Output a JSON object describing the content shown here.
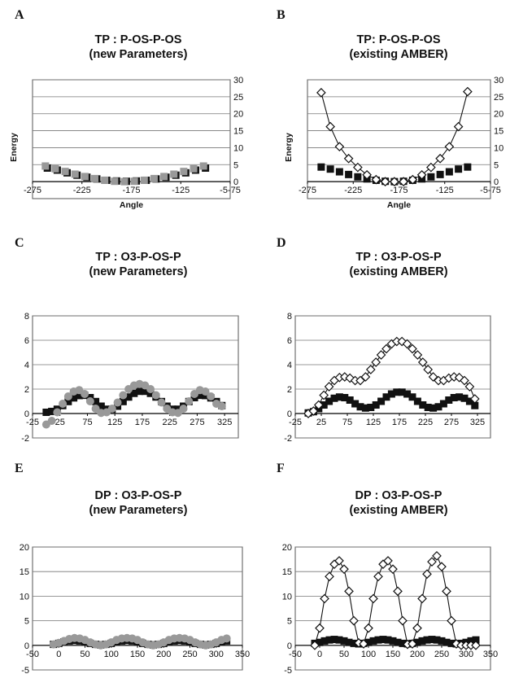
{
  "panels": [
    {
      "letter": "A",
      "title1": "TP : P-OS-P-OS",
      "title2": "(new Parameters)"
    },
    {
      "letter": "B",
      "title1": "TP: P-OS-P-OS",
      "title2": "(existing AMBER)"
    },
    {
      "letter": "C",
      "title1": "TP : O3-P-OS-P",
      "title2": "(new Parameters)"
    },
    {
      "letter": "D",
      "title1": "TP : O3-P-OS-P",
      "title2": "(existing AMBER)"
    },
    {
      "letter": "E",
      "title1": "DP : O3-P-OS-P",
      "title2": "(new Parameters)"
    },
    {
      "letter": "F",
      "title1": "DP : O3-P-OS-P",
      "title2": "(existing AMBER)"
    }
  ],
  "chart_data": [
    {
      "type": "scatter",
      "title": "TP : P-OS-P-OS (new Parameters)",
      "xlabel": "Angle",
      "ylabel": "Energy",
      "xlim": [
        -275,
        -75
      ],
      "ylim": [
        -5,
        30
      ],
      "xticks": [
        -275,
        -225,
        -175,
        -125,
        -75
      ],
      "xticklabels": [
        "-275",
        "-225",
        "-175",
        "-125",
        "-5-75"
      ],
      "yticks": [
        0,
        5,
        10,
        15,
        20,
        25,
        30
      ],
      "ytick_side": "right",
      "grid": true,
      "series": [
        {
          "marker": "square",
          "color": "#111111",
          "connected": false,
          "x": [
            -260,
            -250,
            -240,
            -230,
            -220,
            -210,
            -200,
            -190,
            -180,
            -170,
            -160,
            -150,
            -140,
            -130,
            -120,
            -110,
            -100
          ],
          "y": [
            4.0,
            3.4,
            2.6,
            1.9,
            1.3,
            0.8,
            0.4,
            0.2,
            0.1,
            0.2,
            0.4,
            0.8,
            1.3,
            1.9,
            2.6,
            3.4,
            4.0
          ]
        },
        {
          "marker": "square",
          "color": "#999999",
          "connected": false,
          "x": [
            -262,
            -252,
            -242,
            -232,
            -222,
            -212,
            -202,
            -192,
            -182,
            -172,
            -162,
            -152,
            -142,
            -132,
            -122,
            -112,
            -102
          ],
          "y": [
            4.6,
            3.8,
            3.0,
            2.2,
            1.5,
            0.9,
            0.4,
            0.1,
            0.0,
            0.1,
            0.4,
            0.9,
            1.5,
            2.2,
            3.0,
            3.8,
            4.6
          ]
        }
      ]
    },
    {
      "type": "line",
      "title": "TP: P-OS-P-OS (existing AMBER)",
      "xlabel": "Angle",
      "ylabel": "Energy",
      "xlim": [
        -275,
        -75
      ],
      "ylim": [
        -5,
        30
      ],
      "xticks": [
        -275,
        -225,
        -175,
        -125,
        -75
      ],
      "xticklabels": [
        "-275",
        "-225",
        "-175",
        "-125",
        "-5-75"
      ],
      "yticks": [
        0,
        5,
        10,
        15,
        20,
        25,
        30
      ],
      "ytick_side": "right",
      "grid": true,
      "series": [
        {
          "marker": "square",
          "color": "#111111",
          "connected": false,
          "x": [
            -260,
            -250,
            -240,
            -230,
            -220,
            -210,
            -200,
            -190,
            -180,
            -170,
            -160,
            -150,
            -140,
            -130,
            -120,
            -110,
            -100
          ],
          "y": [
            4.3,
            3.7,
            2.9,
            2.1,
            1.4,
            0.8,
            0.4,
            0.1,
            0.0,
            0.1,
            0.4,
            0.8,
            1.4,
            2.1,
            2.9,
            3.7,
            4.3
          ]
        },
        {
          "marker": "diamond",
          "color": "#111111",
          "connected": true,
          "x": [
            -260,
            -250,
            -240,
            -230,
            -220,
            -210,
            -200,
            -190,
            -180,
            -170,
            -160,
            -150,
            -140,
            -130,
            -120,
            -110,
            -100
          ],
          "y": [
            26.2,
            16.2,
            10.3,
            6.8,
            4.2,
            2.0,
            0.6,
            0.0,
            0.0,
            0.0,
            0.6,
            2.0,
            4.2,
            6.8,
            10.3,
            16.2,
            26.5
          ]
        }
      ]
    },
    {
      "type": "scatter",
      "title": "TP : O3-P-OS-P (new Parameters)",
      "xlabel": "",
      "ylabel": "",
      "xlim": [
        -25,
        350
      ],
      "ylim": [
        -2,
        8
      ],
      "xticks": [
        -25,
        25,
        75,
        125,
        175,
        225,
        275,
        325
      ],
      "xticklabels": [
        "-25",
        "25",
        "75",
        "125",
        "175",
        "225",
        "275",
        "325"
      ],
      "yticks": [
        -2,
        0,
        2,
        4,
        6,
        8
      ],
      "ytick_side": "left",
      "grid": true,
      "series": [
        {
          "marker": "square",
          "color": "#111111",
          "connected": false,
          "x": [
            0,
            10,
            20,
            30,
            40,
            50,
            60,
            70,
            80,
            90,
            100,
            110,
            120,
            130,
            140,
            150,
            160,
            170,
            180,
            190,
            200,
            210,
            220,
            230,
            240,
            250,
            260,
            270,
            280,
            290,
            300,
            310,
            320
          ],
          "y": [
            0.1,
            0.17,
            0.35,
            0.65,
            0.98,
            1.28,
            1.47,
            1.49,
            1.3,
            0.98,
            0.6,
            0.35,
            0.35,
            0.6,
            0.98,
            1.35,
            1.65,
            1.82,
            1.82,
            1.65,
            1.35,
            0.98,
            0.6,
            0.35,
            0.35,
            0.6,
            0.98,
            1.3,
            1.49,
            1.47,
            1.28,
            0.98,
            0.65
          ]
        },
        {
          "marker": "circle",
          "color": "#999999",
          "connected": false,
          "x": [
            0,
            10,
            20,
            30,
            40,
            50,
            60,
            70,
            80,
            90,
            100,
            110,
            120,
            130,
            140,
            150,
            160,
            170,
            180,
            190,
            200,
            210,
            220,
            230,
            240,
            250,
            260,
            270,
            280,
            290,
            300,
            310,
            320
          ],
          "y": [
            -0.9,
            -0.6,
            0.1,
            0.8,
            1.4,
            1.8,
            1.92,
            1.6,
            1.0,
            0.4,
            0.05,
            0.1,
            0.4,
            0.9,
            1.5,
            2.0,
            2.3,
            2.42,
            2.3,
            2.0,
            1.5,
            0.9,
            0.4,
            0.1,
            0.05,
            0.4,
            1.0,
            1.6,
            1.92,
            1.8,
            1.4,
            0.8,
            0.6
          ]
        }
      ]
    },
    {
      "type": "line",
      "title": "TP : O3-P-OS-P (existing AMBER)",
      "xlabel": "",
      "ylabel": "",
      "xlim": [
        -25,
        350
      ],
      "ylim": [
        -2,
        8
      ],
      "xticks": [
        -25,
        25,
        75,
        125,
        175,
        225,
        275,
        325
      ],
      "xticklabels": [
        "-25",
        "25",
        "75",
        "125",
        "175",
        "225",
        "275",
        "325"
      ],
      "yticks": [
        -2,
        0,
        2,
        4,
        6,
        8
      ],
      "ytick_side": "left",
      "grid": true,
      "series": [
        {
          "marker": "square",
          "color": "#111111",
          "connected": false,
          "x": [
            0,
            10,
            20,
            30,
            40,
            50,
            60,
            70,
            80,
            90,
            100,
            110,
            120,
            130,
            140,
            150,
            160,
            170,
            180,
            190,
            200,
            210,
            220,
            230,
            240,
            250,
            260,
            270,
            280,
            290,
            300,
            310,
            320
          ],
          "y": [
            0.05,
            0.15,
            0.4,
            0.7,
            1.0,
            1.25,
            1.35,
            1.3,
            1.1,
            0.8,
            0.55,
            0.45,
            0.5,
            0.7,
            1.0,
            1.35,
            1.6,
            1.75,
            1.75,
            1.6,
            1.35,
            1.0,
            0.7,
            0.5,
            0.45,
            0.55,
            0.8,
            1.1,
            1.3,
            1.35,
            1.25,
            1.0,
            0.65
          ]
        },
        {
          "marker": "diamond",
          "color": "#111111",
          "connected": true,
          "x": [
            0,
            10,
            20,
            30,
            40,
            50,
            60,
            70,
            80,
            90,
            100,
            110,
            120,
            130,
            140,
            150,
            160,
            170,
            180,
            190,
            200,
            210,
            220,
            230,
            240,
            250,
            260,
            270,
            280,
            290,
            300,
            310,
            320
          ],
          "y": [
            0.0,
            0.2,
            0.7,
            1.5,
            2.2,
            2.7,
            2.95,
            3.0,
            2.9,
            2.7,
            2.7,
            3.0,
            3.6,
            4.2,
            4.8,
            5.3,
            5.7,
            5.9,
            5.9,
            5.7,
            5.3,
            4.8,
            4.2,
            3.6,
            3.0,
            2.7,
            2.7,
            2.9,
            3.0,
            2.95,
            2.7,
            2.2,
            1.2
          ]
        }
      ]
    },
    {
      "type": "scatter",
      "title": "DP : O3-P-OS-P (new Parameters)",
      "xlabel": "",
      "ylabel": "",
      "xlim": [
        -50,
        350
      ],
      "ylim": [
        -5,
        20
      ],
      "xticks": [
        -50,
        0,
        50,
        100,
        150,
        200,
        250,
        300,
        350
      ],
      "xticklabels": [
        "-50",
        "0",
        "50",
        "100",
        "150",
        "200",
        "250",
        "300",
        "350"
      ],
      "yticks": [
        -5,
        0,
        5,
        10,
        15,
        20
      ],
      "ytick_side": "left",
      "grid": true,
      "series": [
        {
          "marker": "square",
          "color": "#111111",
          "connected": false,
          "x": [
            -10,
            0,
            10,
            20,
            30,
            40,
            50,
            60,
            70,
            80,
            90,
            100,
            110,
            120,
            130,
            140,
            150,
            160,
            170,
            180,
            190,
            200,
            210,
            220,
            230,
            240,
            250,
            260,
            270,
            280,
            290,
            300,
            310,
            320
          ],
          "y": [
            0.2,
            0.4,
            0.7,
            0.9,
            1.0,
            0.9,
            0.7,
            0.4,
            0.2,
            0.1,
            0.2,
            0.4,
            0.7,
            0.9,
            1.0,
            0.9,
            0.7,
            0.4,
            0.2,
            0.1,
            0.2,
            0.4,
            0.7,
            0.9,
            1.0,
            0.9,
            0.7,
            0.4,
            0.2,
            0.1,
            0.2,
            0.4,
            0.7,
            0.9
          ]
        },
        {
          "marker": "circle",
          "color": "#999999",
          "connected": false,
          "x": [
            -10,
            0,
            10,
            20,
            30,
            40,
            50,
            60,
            70,
            80,
            90,
            100,
            110,
            120,
            130,
            140,
            150,
            160,
            170,
            180,
            190,
            200,
            210,
            220,
            230,
            240,
            250,
            260,
            270,
            280,
            290,
            300,
            310,
            320
          ],
          "y": [
            0.2,
            0.5,
            0.9,
            1.3,
            1.5,
            1.4,
            1.1,
            0.6,
            0.2,
            0.0,
            0.2,
            0.6,
            1.1,
            1.4,
            1.5,
            1.4,
            1.1,
            0.6,
            0.2,
            0.0,
            0.2,
            0.6,
            1.1,
            1.4,
            1.5,
            1.4,
            1.1,
            0.6,
            0.2,
            0.0,
            0.2,
            0.6,
            1.1,
            1.4
          ]
        }
      ]
    },
    {
      "type": "line",
      "title": "DP : O3-P-OS-P (existing AMBER)",
      "xlabel": "",
      "ylabel": "",
      "xlim": [
        -50,
        350
      ],
      "ylim": [
        -5,
        20
      ],
      "xticks": [
        -50,
        0,
        50,
        100,
        150,
        200,
        250,
        300,
        350
      ],
      "xticklabels": [
        "-50",
        "0",
        "50",
        "100",
        "150",
        "200",
        "250",
        "300",
        "350"
      ],
      "yticks": [
        -5,
        0,
        5,
        10,
        15,
        20
      ],
      "ytick_side": "left",
      "grid": true,
      "series": [
        {
          "marker": "square",
          "color": "#111111",
          "connected": false,
          "x": [
            -10,
            0,
            10,
            20,
            30,
            40,
            50,
            60,
            70,
            80,
            90,
            100,
            110,
            120,
            130,
            140,
            150,
            160,
            170,
            180,
            190,
            200,
            210,
            220,
            230,
            240,
            250,
            260,
            270,
            280,
            290,
            300,
            310,
            320
          ],
          "y": [
            0.4,
            0.6,
            0.9,
            1.1,
            1.2,
            1.1,
            0.9,
            0.6,
            0.4,
            0.3,
            0.4,
            0.6,
            0.9,
            1.1,
            1.2,
            1.1,
            0.9,
            0.6,
            0.4,
            0.3,
            0.4,
            0.6,
            0.9,
            1.1,
            1.2,
            1.1,
            0.9,
            0.6,
            0.4,
            0.3,
            0.4,
            0.6,
            0.9,
            1.1
          ]
        },
        {
          "marker": "diamond",
          "color": "#111111",
          "connected": true,
          "x": [
            -10,
            0,
            10,
            20,
            30,
            40,
            50,
            60,
            70,
            80,
            90,
            100,
            110,
            120,
            130,
            140,
            150,
            160,
            170,
            180,
            190,
            200,
            210,
            220,
            230,
            240,
            250,
            260,
            270,
            280,
            290,
            300,
            310,
            320
          ],
          "y": [
            0.0,
            3.5,
            9.5,
            14.0,
            16.5,
            17.2,
            15.5,
            11.0,
            5.0,
            0.5,
            0.3,
            3.5,
            9.5,
            14.0,
            16.5,
            17.2,
            15.5,
            11.0,
            5.0,
            0.2,
            0.3,
            3.5,
            9.5,
            14.5,
            17.0,
            18.2,
            16.0,
            11.0,
            5.0,
            0.3,
            0.0,
            0.0,
            0.0,
            0.0
          ]
        }
      ]
    }
  ]
}
